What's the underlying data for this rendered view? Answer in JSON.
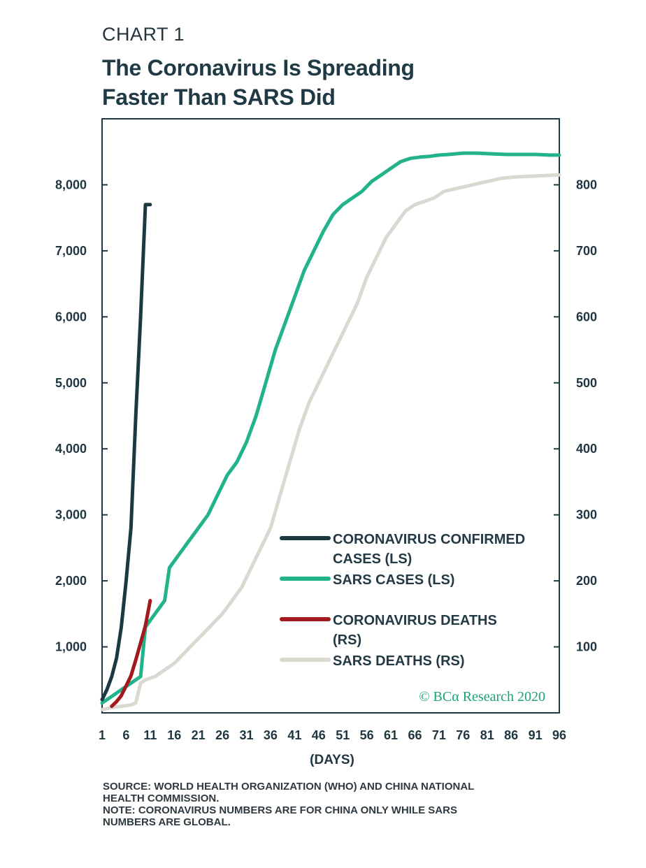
{
  "header": {
    "chart_label": "CHART 1",
    "title_line1": "The Coronavirus Is Spreading",
    "title_line2": "Faster Than SARS Did"
  },
  "chart_data": {
    "type": "line",
    "xlabel": "(DAYS)",
    "x_ticks": [
      1,
      6,
      11,
      16,
      21,
      26,
      31,
      36,
      41,
      46,
      51,
      56,
      61,
      66,
      71,
      76,
      81,
      86,
      91,
      96
    ],
    "xlim": [
      1,
      96
    ],
    "y_left": {
      "lim": [
        0,
        9000
      ],
      "ticks": [
        1000,
        2000,
        3000,
        4000,
        5000,
        6000,
        7000,
        8000
      ],
      "tick_labels": [
        "1,000",
        "2,000",
        "3,000",
        "4,000",
        "5,000",
        "6,000",
        "7,000",
        "8,000"
      ]
    },
    "y_right": {
      "lim": [
        0,
        900
      ],
      "ticks": [
        100,
        200,
        300,
        400,
        500,
        600,
        700,
        800
      ],
      "tick_labels": [
        "100",
        "200",
        "300",
        "400",
        "500",
        "600",
        "700",
        "800"
      ]
    },
    "grid": false,
    "legend_position": "bottom-right",
    "annotation": "© BCα Research 2020",
    "colors": {
      "coronavirus_cases": "#1c3942",
      "sars_cases": "#22b38a",
      "coronavirus_deaths": "#a31a1e",
      "sars_deaths": "#d9d8d1",
      "frame": "#1c3942",
      "annotation": "#1aa377"
    },
    "series": [
      {
        "name": "CORONAVIRUS CONFIRMED CASES (LS)",
        "axis": "left",
        "color": "#1c3942",
        "x": [
          1,
          2,
          3,
          4,
          5,
          6,
          7,
          8,
          9,
          10,
          11
        ],
        "y": [
          200,
          350,
          550,
          830,
          1300,
          2000,
          2800,
          4500,
          6000,
          7700,
          7700
        ]
      },
      {
        "name": "SARS CASES (LS)",
        "axis": "left",
        "color": "#22b38a",
        "x": [
          1,
          3,
          5,
          7,
          9,
          10,
          12,
          14,
          15,
          17,
          19,
          21,
          23,
          25,
          27,
          29,
          31,
          33,
          35,
          37,
          39,
          41,
          43,
          45,
          47,
          49,
          51,
          53,
          55,
          57,
          59,
          61,
          63,
          65,
          67,
          69,
          71,
          73,
          76,
          79,
          82,
          85,
          88,
          91,
          94,
          96
        ],
        "y": [
          150,
          250,
          350,
          450,
          550,
          1300,
          1500,
          1700,
          2200,
          2400,
          2600,
          2800,
          3000,
          3300,
          3600,
          3800,
          4100,
          4500,
          5000,
          5500,
          5900,
          6300,
          6700,
          7000,
          7300,
          7550,
          7700,
          7800,
          7900,
          8050,
          8150,
          8250,
          8350,
          8400,
          8420,
          8430,
          8450,
          8460,
          8480,
          8480,
          8470,
          8460,
          8460,
          8460,
          8450,
          8450
        ]
      },
      {
        "name": "CORONAVIRUS DEATHS (RS)",
        "axis": "right",
        "color": "#a31a1e",
        "x": [
          3,
          4,
          5,
          6,
          7,
          8,
          9,
          10,
          11
        ],
        "y": [
          10,
          17,
          26,
          41,
          56,
          80,
          106,
          132,
          170
        ]
      },
      {
        "name": "SARS DEATHS (RS)",
        "axis": "right",
        "color": "#d9d8d1",
        "x": [
          1,
          3,
          5,
          7,
          8,
          9,
          10,
          12,
          14,
          16,
          18,
          20,
          22,
          24,
          26,
          28,
          30,
          32,
          34,
          36,
          38,
          40,
          42,
          44,
          46,
          48,
          50,
          52,
          54,
          56,
          58,
          60,
          62,
          64,
          66,
          68,
          70,
          72,
          75,
          78,
          81,
          84,
          87,
          90,
          93,
          96
        ],
        "y": [
          5,
          8,
          10,
          12,
          15,
          45,
          50,
          55,
          65,
          75,
          90,
          105,
          120,
          135,
          150,
          170,
          190,
          220,
          250,
          280,
          330,
          380,
          430,
          470,
          500,
          530,
          560,
          590,
          620,
          660,
          690,
          720,
          740,
          760,
          770,
          775,
          780,
          790,
          795,
          800,
          805,
          810,
          812,
          813,
          814,
          815
        ]
      }
    ]
  },
  "notes": {
    "source_line1": "SOURCE: WORLD HEALTH ORGANIZATION (WHO) AND CHINA NATIONAL",
    "source_line2": "HEALTH COMMISSION.",
    "note_line1": "NOTE: CORONAVIRUS NUMBERS ARE FOR CHINA ONLY WHILE SARS",
    "note_line2": "NUMBERS ARE GLOBAL."
  }
}
